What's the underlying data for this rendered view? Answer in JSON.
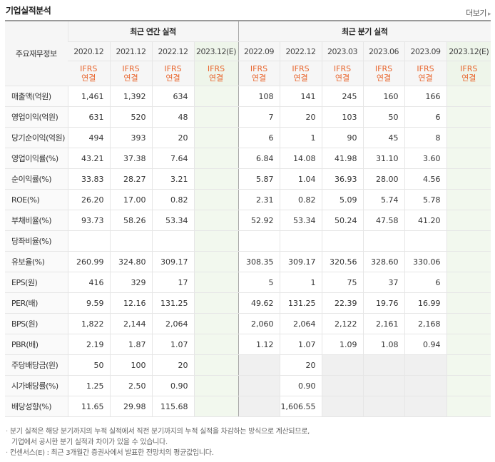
{
  "title": "기업실적분석",
  "more_link": "더보기",
  "header": {
    "row_label": "주요재무정보",
    "annual_group": "최근 연간 실적",
    "quarter_group": "최근 분기 실적",
    "annual_periods": [
      "2020.12",
      "2021.12",
      "2022.12",
      "2023.12(E)"
    ],
    "quarter_periods": [
      "2022.09",
      "2022.12",
      "2023.03",
      "2023.06",
      "2023.09",
      "2023.12(E)"
    ],
    "basis_line1": "IFRS",
    "basis_line2": "연결"
  },
  "rows": [
    {
      "label": "매출액(억원)",
      "annual": [
        "1,461",
        "1,392",
        "634",
        ""
      ],
      "quarter": [
        "108",
        "141",
        "245",
        "160",
        "166",
        ""
      ]
    },
    {
      "label": "영업이익(억원)",
      "annual": [
        "631",
        "520",
        "48",
        ""
      ],
      "quarter": [
        "7",
        "20",
        "103",
        "50",
        "6",
        ""
      ]
    },
    {
      "label": "당기순이익(억원)",
      "annual": [
        "494",
        "393",
        "20",
        ""
      ],
      "quarter": [
        "6",
        "1",
        "90",
        "45",
        "8",
        ""
      ]
    },
    {
      "label": "영업이익률(%)",
      "annual": [
        "43.21",
        "37.38",
        "7.64",
        ""
      ],
      "quarter": [
        "6.84",
        "14.08",
        "41.98",
        "31.10",
        "3.60",
        ""
      ]
    },
    {
      "label": "순이익률(%)",
      "annual": [
        "33.83",
        "28.27",
        "3.21",
        ""
      ],
      "quarter": [
        "5.87",
        "1.04",
        "36.93",
        "28.00",
        "4.56",
        ""
      ]
    },
    {
      "label": "ROE(%)",
      "annual": [
        "26.20",
        "17.00",
        "0.82",
        ""
      ],
      "quarter": [
        "2.31",
        "0.82",
        "5.09",
        "5.74",
        "5.78",
        ""
      ]
    },
    {
      "label": "부채비율(%)",
      "annual": [
        "93.73",
        "58.26",
        "53.34",
        ""
      ],
      "quarter": [
        "52.92",
        "53.34",
        "50.24",
        "47.58",
        "41.20",
        ""
      ]
    },
    {
      "label": "당좌비율(%)",
      "annual": [
        "",
        "",
        "",
        ""
      ],
      "quarter": [
        "",
        "",
        "",
        "",
        "",
        ""
      ]
    },
    {
      "label": "유보율(%)",
      "annual": [
        "260.99",
        "324.80",
        "309.17",
        ""
      ],
      "quarter": [
        "308.35",
        "309.17",
        "320.56",
        "328.60",
        "330.06",
        ""
      ]
    },
    {
      "label": "EPS(원)",
      "annual": [
        "416",
        "329",
        "17",
        ""
      ],
      "quarter": [
        "5",
        "1",
        "75",
        "37",
        "6",
        ""
      ]
    },
    {
      "label": "PER(배)",
      "annual": [
        "9.59",
        "12.16",
        "131.25",
        ""
      ],
      "quarter": [
        "49.62",
        "131.25",
        "22.39",
        "19.76",
        "16.99",
        ""
      ]
    },
    {
      "label": "BPS(원)",
      "annual": [
        "1,822",
        "2,144",
        "2,064",
        ""
      ],
      "quarter": [
        "2,060",
        "2,064",
        "2,122",
        "2,161",
        "2,168",
        ""
      ]
    },
    {
      "label": "PBR(배)",
      "annual": [
        "2.19",
        "1.87",
        "1.07",
        ""
      ],
      "quarter": [
        "1.12",
        "1.07",
        "1.09",
        "1.08",
        "0.94",
        ""
      ]
    },
    {
      "label": "주당배당금(원)",
      "annual": [
        "50",
        "100",
        "20",
        ""
      ],
      "quarter": [
        "",
        "20",
        "",
        "",
        "",
        ""
      ]
    },
    {
      "label": "시가배당률(%)",
      "annual": [
        "1.25",
        "2.50",
        "0.90",
        ""
      ],
      "quarter": [
        "",
        "0.90",
        "",
        "",
        "",
        ""
      ]
    },
    {
      "label": "배당성향(%)",
      "annual": [
        "11.65",
        "29.98",
        "115.68",
        ""
      ],
      "quarter": [
        "",
        "1,606.55",
        "",
        "",
        "",
        ""
      ]
    }
  ],
  "notes": {
    "line1": "분기 실적은 해당 분기까지의 누적 실적에서 직전 분기까지의 누적 실적을 차감하는 방식으로 계산되므로,",
    "line2": "기업에서 공시한 분기 실적과 차이가 있을 수 있습니다.",
    "line3": "컨센서스(E) : 최근 3개월간 증권사에서 발표한 전망치의 평균값입니다."
  }
}
